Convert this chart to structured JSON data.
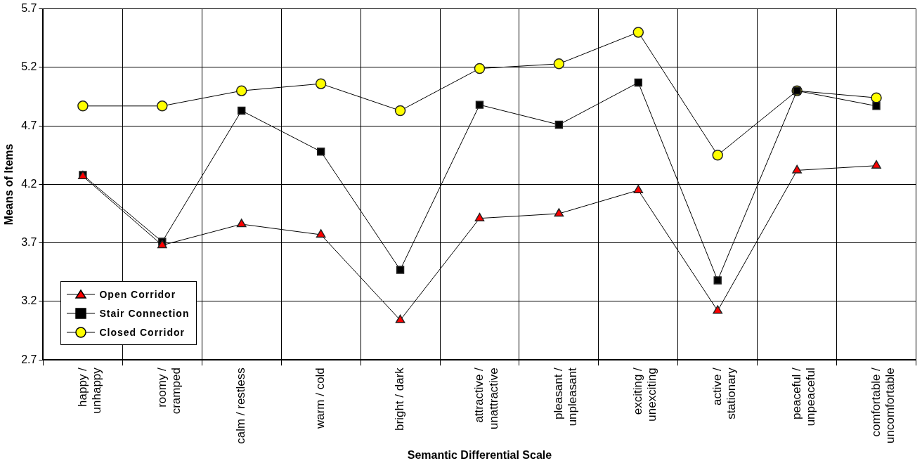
{
  "chart_data": {
    "type": "line",
    "xlabel": "Semantic Differential Scale",
    "ylabel": "Means of Items",
    "categories": [
      "happy /\nunhappy",
      "roomy /\ncramped",
      "calm / restless",
      "warm / cold",
      "bright / dark",
      "attractive /\nunattractive",
      "pleasant /\nunpleasant",
      "exciting /\nunexciting",
      "active /\nstationary",
      "peaceful /\nunpeaceful",
      "comfortable /\nuncomfortable"
    ],
    "series": [
      {
        "name": "Open Corridor",
        "color": "#ff0000",
        "marker": "triangle",
        "values": [
          4.27,
          3.68,
          3.86,
          3.77,
          3.04,
          3.91,
          3.95,
          4.15,
          3.12,
          4.32,
          4.36
        ]
      },
      {
        "name": "Stair Connection",
        "color": "#000000",
        "marker": "square",
        "values": [
          4.28,
          3.71,
          4.83,
          4.48,
          3.47,
          4.88,
          4.71,
          5.07,
          3.38,
          5.0,
          4.87
        ]
      },
      {
        "name": "Closed Corridor",
        "color": "#ffff00",
        "marker": "circle",
        "values": [
          4.87,
          4.87,
          5.0,
          5.06,
          4.83,
          5.19,
          5.23,
          5.5,
          4.45,
          5.0,
          4.94
        ]
      }
    ],
    "ylim": [
      2.7,
      5.7
    ],
    "yticks": [
      2.7,
      3.2,
      3.7,
      4.2,
      4.7,
      5.2,
      5.7
    ],
    "grid": true,
    "legend": "bottom left"
  }
}
